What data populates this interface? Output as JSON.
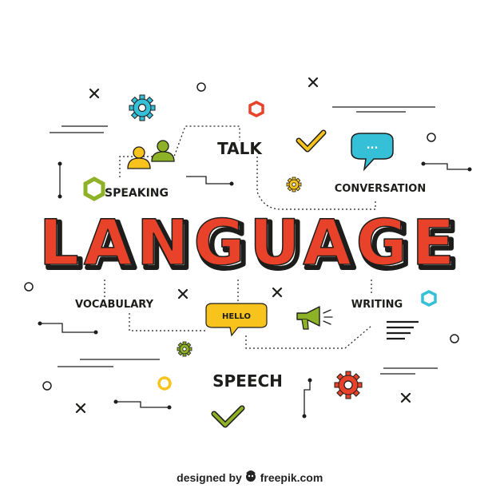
{
  "title": "LANGUAGE",
  "words": {
    "talk": "TALK",
    "speaking": "SPEAKING",
    "conversation": "CONVERSATION",
    "vocabulary": "VOCABULARY",
    "writing": "WRITING",
    "speech": "SPEECH",
    "hello": "HELLO",
    "chat_dots": "..."
  },
  "footer": {
    "designed_by": "designed by",
    "brand": "freepik.com"
  },
  "colors": {
    "title_red": "#e8432a",
    "ink": "#1d1d1b",
    "yellow": "#f7c31c",
    "olive": "#8db127",
    "cyan": "#36c0d8",
    "orange": "#e8432a"
  },
  "icons": [
    "gear-icon",
    "people-icon",
    "chat-bubble-icon",
    "checkmark-icon",
    "megaphone-icon",
    "text-lines-icon",
    "close-icon",
    "circle-icon",
    "hexagon-icon"
  ]
}
